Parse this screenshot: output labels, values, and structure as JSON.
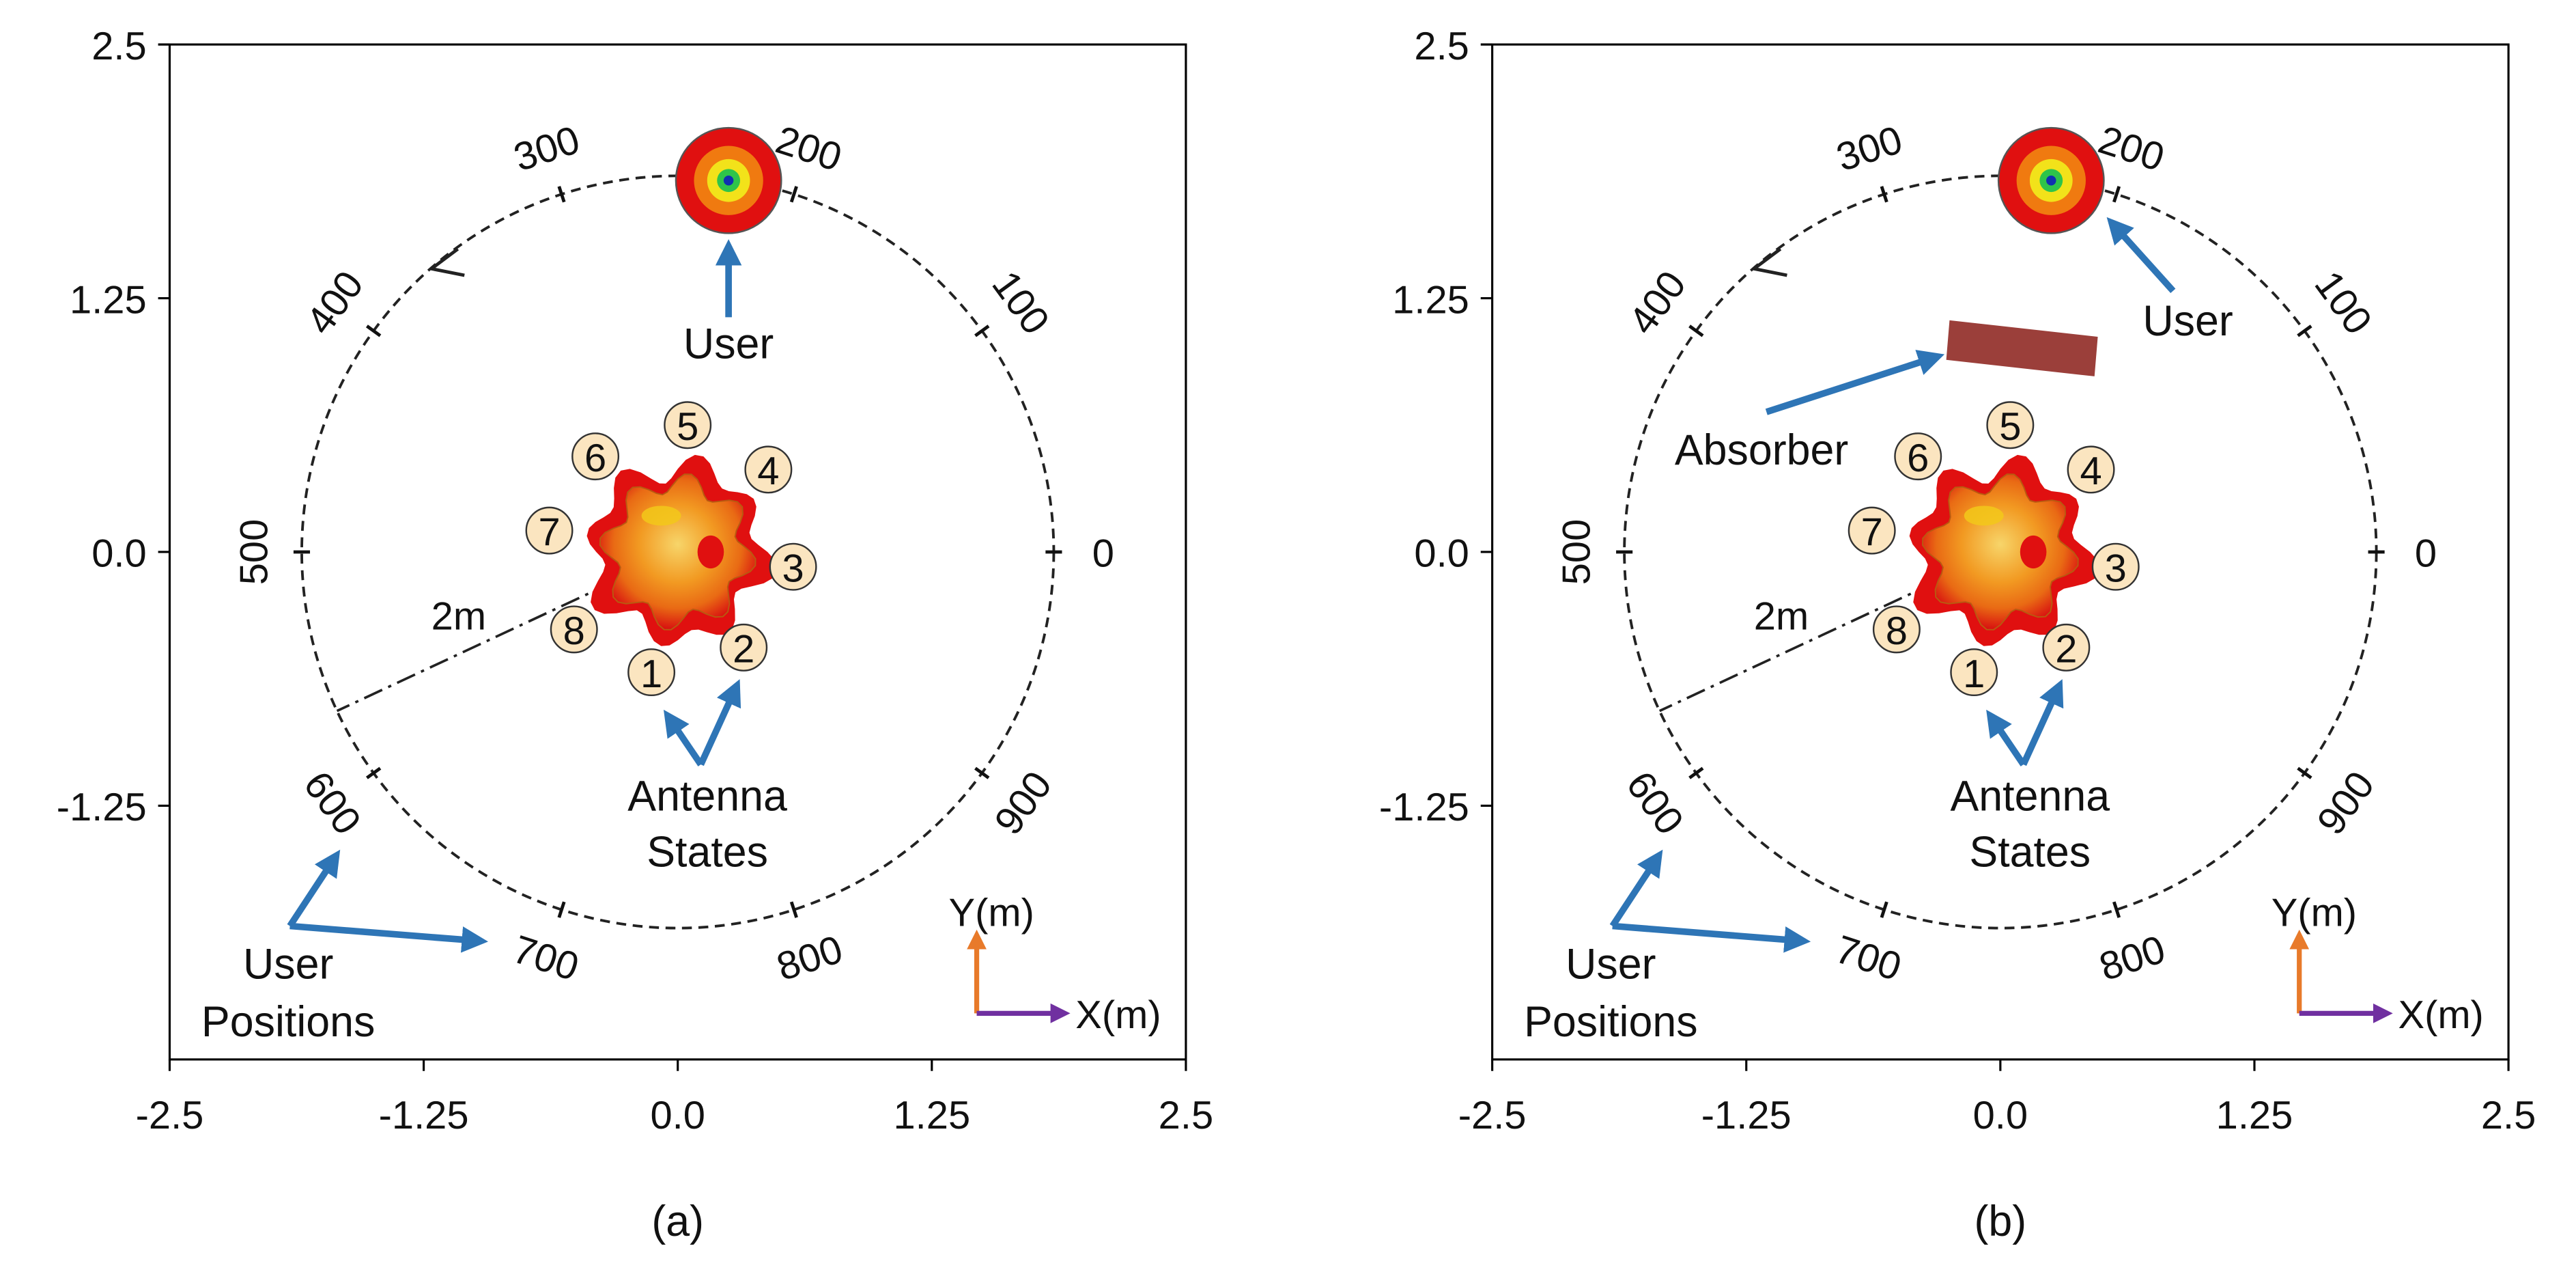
{
  "panels": [
    {
      "id": "a",
      "caption": "(a)",
      "user_label": "User",
      "absorber_label": "",
      "has_absorber": false
    },
    {
      "id": "b",
      "caption": "(b)",
      "user_label": "User",
      "absorber_label": "Absorber",
      "has_absorber": true
    }
  ],
  "axes": {
    "xticks": [
      "-2.5",
      "-1.25",
      "0.0",
      "1.25",
      "2.5"
    ],
    "yticks": [
      "2.5",
      "1.25",
      "0.0",
      "-1.25"
    ],
    "xlim": [
      -2.5,
      2.5
    ],
    "ylim": [
      -2.5,
      2.5
    ]
  },
  "circle": {
    "radius_label": "2m",
    "position_labels": [
      "0",
      "100",
      "200",
      "300",
      "400",
      "500",
      "600",
      "700",
      "800",
      "900"
    ]
  },
  "antenna": {
    "states_label_line1": "Antenna",
    "states_label_line2": "States",
    "state_numbers": [
      "1",
      "2",
      "3",
      "4",
      "5",
      "6",
      "7",
      "8"
    ]
  },
  "user_positions_label_line1": "User",
  "user_positions_label_line2": "Positions",
  "axis_indicator": {
    "y_label": "Y(m)",
    "x_label": "X(m)"
  },
  "colors": {
    "arrow": "#2e75b6",
    "y_indicator": "#e87a2a",
    "x_indicator": "#7030a0",
    "badge_fill": "#fbe5c0",
    "absorber": "#9b3f3a",
    "pattern_outer": "#e01010",
    "pattern_mid": "#f08a10",
    "pattern_inner": "#f2c81a"
  }
}
